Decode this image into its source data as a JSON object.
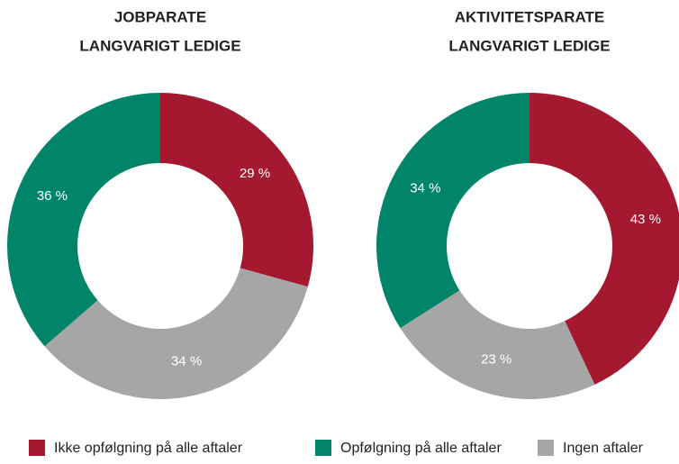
{
  "chart_data": [
    {
      "type": "pie",
      "title": [
        "JOBPARATE",
        "LANGVARIGT LEDIGE"
      ],
      "categories": [
        "Ikke opfølgning på alle aftaler",
        "Ingen aftaler",
        "Opfølgning på alle aftaler"
      ],
      "values": [
        29,
        34,
        36
      ],
      "value_labels": [
        "29 %",
        "34 %",
        "36 %"
      ],
      "colors": [
        "#a51930",
        "#a6a6a6",
        "#00856a"
      ]
    },
    {
      "type": "pie",
      "title": [
        "AKTIVITETSPARATE",
        "LANGVARIGT LEDIGE"
      ],
      "categories": [
        "Ikke opfølgning på alle aftaler",
        "Ingen aftaler",
        "Opfølgning på alle aftaler"
      ],
      "values": [
        43,
        23,
        34
      ],
      "value_labels": [
        "43 %",
        "23 %",
        "34 %"
      ],
      "colors": [
        "#a51930",
        "#a6a6a6",
        "#00856a"
      ]
    }
  ]
}
